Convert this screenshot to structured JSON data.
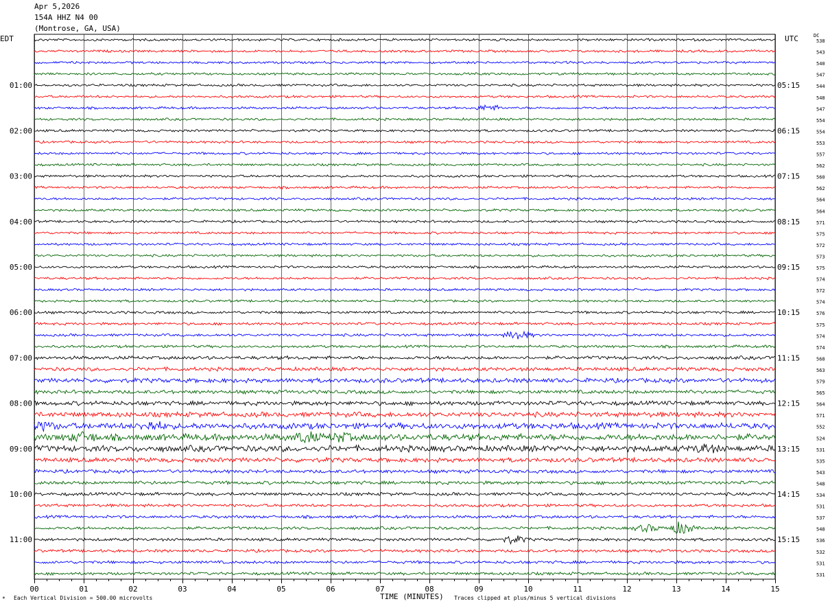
{
  "header": {
    "date": "Apr 5,2026",
    "station": "154A HHZ N4 00",
    "location": "(Montrose, GA, USA)"
  },
  "left_tz": "EDT",
  "right_tz": "UTC",
  "dc_label": "DC",
  "footer": {
    "scale_note": "Each Vertical Division =  500.00 microvolts",
    "xlabel": "TIME (MINUTES)",
    "clip_note": "Traces clipped at plus/minus 5 vertical divisions",
    "corner_mark": "*"
  },
  "colors": {
    "trace_cycle": [
      "#000000",
      "#ff0000",
      "#0000ff",
      "#006400"
    ],
    "grid": "#000000"
  },
  "chart_data": {
    "type": "line",
    "title": "154A HHZ N4 00",
    "xlabel": "TIME (MINUTES)",
    "xlim": [
      0,
      15
    ],
    "x_ticks": [
      "00",
      "01",
      "02",
      "03",
      "04",
      "05",
      "06",
      "07",
      "08",
      "09",
      "10",
      "11",
      "12",
      "13",
      "14",
      "15"
    ],
    "trace_count": 48,
    "left_hour_labels": [
      {
        "row": 4,
        "text": "01:00"
      },
      {
        "row": 8,
        "text": "02:00"
      },
      {
        "row": 12,
        "text": "03:00"
      },
      {
        "row": 16,
        "text": "04:00"
      },
      {
        "row": 20,
        "text": "05:00"
      },
      {
        "row": 24,
        "text": "06:00"
      },
      {
        "row": 28,
        "text": "07:00"
      },
      {
        "row": 32,
        "text": "08:00"
      },
      {
        "row": 36,
        "text": "09:00"
      },
      {
        "row": 40,
        "text": "10:00"
      },
      {
        "row": 44,
        "text": "11:00"
      }
    ],
    "right_hour_labels": [
      {
        "row": 4,
        "text": "05:15"
      },
      {
        "row": 8,
        "text": "06:15"
      },
      {
        "row": 12,
        "text": "07:15"
      },
      {
        "row": 16,
        "text": "08:15"
      },
      {
        "row": 20,
        "text": "09:15"
      },
      {
        "row": 24,
        "text": "10:15"
      },
      {
        "row": 28,
        "text": "11:15"
      },
      {
        "row": 32,
        "text": "12:15"
      },
      {
        "row": 36,
        "text": "13:15"
      },
      {
        "row": 40,
        "text": "14:15"
      },
      {
        "row": 44,
        "text": "15:15"
      }
    ],
    "dc_offsets": [
      538,
      543,
      540,
      547,
      544,
      548,
      547,
      554,
      554,
      553,
      557,
      562,
      560,
      562,
      564,
      564,
      571,
      575,
      572,
      573,
      575,
      574,
      572,
      574,
      576,
      575,
      574,
      574,
      568,
      563,
      579,
      565,
      564,
      571,
      552,
      524,
      531,
      535,
      543,
      548,
      534,
      531,
      537,
      548,
      536,
      532,
      531,
      531
    ],
    "row_amplitude": [
      0.9,
      0.9,
      0.9,
      0.9,
      0.9,
      0.9,
      0.9,
      0.9,
      0.9,
      0.9,
      0.9,
      0.9,
      0.9,
      0.9,
      0.9,
      0.9,
      0.9,
      0.9,
      0.9,
      0.9,
      0.9,
      0.9,
      0.9,
      0.9,
      1.0,
      1.0,
      1.0,
      1.0,
      1.3,
      1.4,
      1.7,
      1.4,
      1.6,
      1.9,
      2.3,
      2.5,
      2.3,
      1.7,
      1.3,
      1.3,
      1.2,
      1.1,
      1.1,
      1.1,
      1.1,
      1.1,
      1.1,
      1.1
    ],
    "events": [
      {
        "row": 6,
        "minute": 9.2,
        "strength": 1.6
      },
      {
        "row": 26,
        "minute": 9.8,
        "strength": 2.6
      },
      {
        "row": 34,
        "minute": 2.4,
        "strength": 2.0
      },
      {
        "row": 34,
        "minute": 0.2,
        "strength": 1.6
      },
      {
        "row": 35,
        "minute": 1.0,
        "strength": 2.0
      },
      {
        "row": 35,
        "minute": 5.5,
        "strength": 2.4
      },
      {
        "row": 35,
        "minute": 6.2,
        "strength": 1.8
      },
      {
        "row": 36,
        "minute": 13.6,
        "strength": 1.8
      },
      {
        "row": 43,
        "minute": 13.1,
        "strength": 3.4
      },
      {
        "row": 43,
        "minute": 12.4,
        "strength": 1.8
      },
      {
        "row": 44,
        "minute": 9.7,
        "strength": 2.0
      }
    ]
  }
}
